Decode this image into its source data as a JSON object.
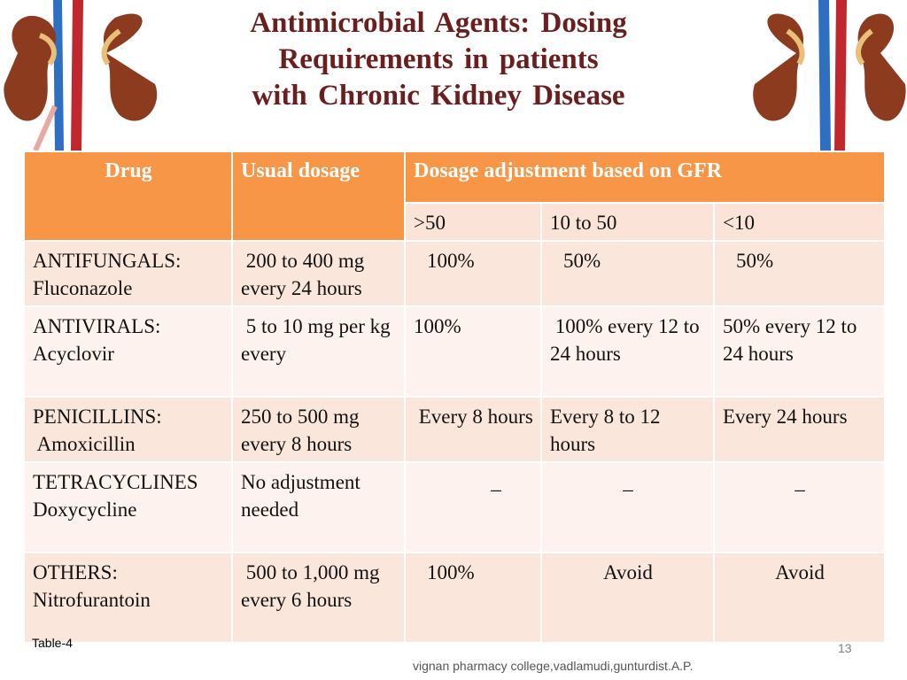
{
  "slide": {
    "title_lines": [
      "Antimicrobial  Agents:  Dosing",
      "Requirements  in  patients",
      "with  Chronic  Kidney  Disease"
    ],
    "table_label": "Table-4",
    "page_number": "13",
    "credit": "vignan pharmacy college,vadlamudi,gunturdist.A.P."
  },
  "table": {
    "headers": {
      "drug": "Drug",
      "usual": "Usual dosage",
      "adjust": "Dosage adjustment based on GFR",
      "gfr": [
        ">50",
        "10 to 50",
        "<10"
      ]
    },
    "rows": [
      {
        "cls": "ANTIFUNGALS:",
        "drug": "Fluconazole",
        "dose": " 200 to 400 mg every 24 hours",
        "gfr": [
          "100%",
          "50%",
          "50%"
        ]
      },
      {
        "cls": "ANTIVIRALS:",
        "drug": "Acyclovir",
        "dose": " 5 to 10 mg per kg every",
        "gfr": [
          "100%",
          " 100% every 12 to  24 hours",
          "50% every 12 to 24 hours"
        ]
      },
      {
        "cls": "PENICILLINS:",
        "drug": " Amoxicillin",
        "dose": "250 to 500 mg every 8 hours",
        "gfr": [
          " Every 8 hours",
          "Every 8 to 12 hours",
          "Every 24 hours"
        ]
      },
      {
        "cls": "TETRACYCLINES",
        "drug": "Doxycycline",
        "dose": "No adjustment  needed",
        "gfr": [
          "_",
          "_",
          "_"
        ]
      },
      {
        "cls": "OTHERS:",
        "drug": "Nitrofurantoin",
        "dose": " 500 to 1,000 mg every 6 hours",
        "gfr": [
          "100%",
          "Avoid",
          "Avoid"
        ]
      }
    ]
  },
  "colors": {
    "header_orange": "#f79646",
    "row_dark": "#fbe6dc",
    "row_light": "#fdf2ed",
    "title": "#6b1e1e"
  }
}
